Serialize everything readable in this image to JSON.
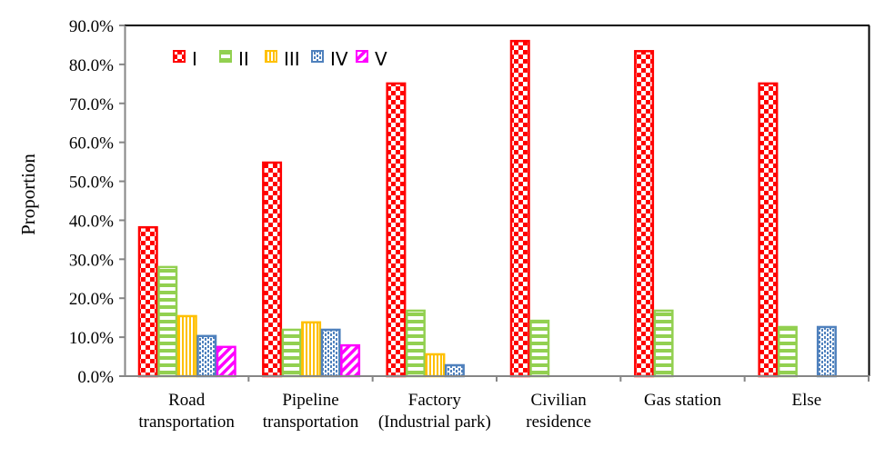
{
  "chart_data": {
    "type": "bar",
    "title": "",
    "xlabel": "",
    "ylabel": "Proportion",
    "ylim": [
      0,
      90
    ],
    "y_tick_step": 10,
    "y_tick_labels": [
      "0.0%",
      "10.0%",
      "20.0%",
      "30.0%",
      "40.0%",
      "50.0%",
      "60.0%",
      "70.0%",
      "80.0%",
      "90.0%"
    ],
    "grid": false,
    "legend_position": "top-left",
    "categories": [
      [
        "Road",
        "transportation"
      ],
      [
        "Pipeline",
        "transportation"
      ],
      [
        "Factory",
        "(Industrial park)"
      ],
      [
        "Civilian",
        "residence"
      ],
      [
        "Gas station"
      ],
      [
        "Else"
      ]
    ],
    "series": [
      {
        "name": "I",
        "color": "#ff0000",
        "pattern": "checker",
        "values": [
          38.2,
          54.8,
          75.1,
          86.0,
          83.4,
          75.1
        ]
      },
      {
        "name": "II",
        "color": "#92d050",
        "pattern": "horizontal",
        "values": [
          28.0,
          11.9,
          16.8,
          14.2,
          16.8,
          12.6
        ]
      },
      {
        "name": "III",
        "color": "#ffc000",
        "pattern": "vertical",
        "values": [
          15.4,
          13.8,
          5.6,
          0,
          0,
          0
        ]
      },
      {
        "name": "IV",
        "color": "#4f81bd",
        "pattern": "dotted",
        "values": [
          10.3,
          11.9,
          2.8,
          0,
          0,
          12.6
        ]
      },
      {
        "name": "V",
        "color": "#ff00ff",
        "pattern": "diagonal",
        "values": [
          7.5,
          7.9,
          0,
          0,
          0,
          0
        ]
      }
    ]
  }
}
